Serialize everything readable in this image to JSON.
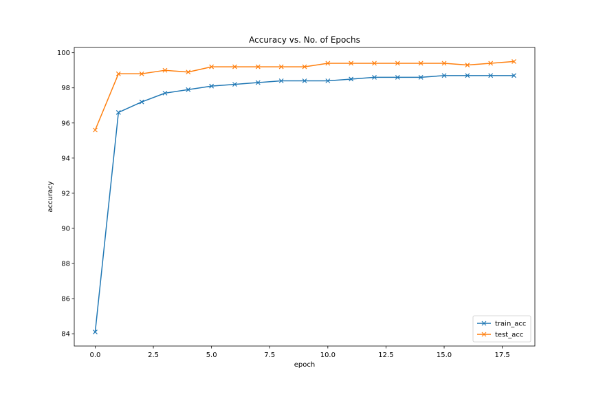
{
  "chart_data": {
    "type": "line",
    "title": "Accuracy vs. No. of Epochs",
    "xlabel": "epoch",
    "ylabel": "accuracy",
    "xlim": [
      -0.9,
      18.9
    ],
    "ylim": [
      83.3,
      100.3
    ],
    "grid": false,
    "legend_position": "lower-right",
    "x_ticks": [
      0.0,
      2.5,
      5.0,
      7.5,
      10.0,
      12.5,
      15.0,
      17.5
    ],
    "x_tick_labels": [
      "0.0",
      "2.5",
      "5.0",
      "7.5",
      "10.0",
      "12.5",
      "15.0",
      "17.5"
    ],
    "y_ticks": [
      84,
      86,
      88,
      90,
      92,
      94,
      96,
      98,
      100
    ],
    "y_tick_labels": [
      "84",
      "86",
      "88",
      "90",
      "92",
      "94",
      "96",
      "98",
      "100"
    ],
    "x": [
      0,
      1,
      2,
      3,
      4,
      5,
      6,
      7,
      8,
      9,
      10,
      11,
      12,
      13,
      14,
      15,
      16,
      17,
      18
    ],
    "series": [
      {
        "name": "train_acc",
        "color": "#1f77b4",
        "marker": "x",
        "values": [
          84.1,
          96.6,
          97.2,
          97.7,
          97.9,
          98.1,
          98.2,
          98.3,
          98.4,
          98.4,
          98.4,
          98.5,
          98.6,
          98.6,
          98.6,
          98.7,
          98.7,
          98.7,
          98.7
        ]
      },
      {
        "name": "test_acc",
        "color": "#ff7f0e",
        "marker": "x",
        "values": [
          95.6,
          98.8,
          98.8,
          99.0,
          98.9,
          99.2,
          99.2,
          99.2,
          99.2,
          99.2,
          99.4,
          99.4,
          99.4,
          99.4,
          99.4,
          99.4,
          99.3,
          99.4,
          99.5
        ]
      }
    ]
  }
}
